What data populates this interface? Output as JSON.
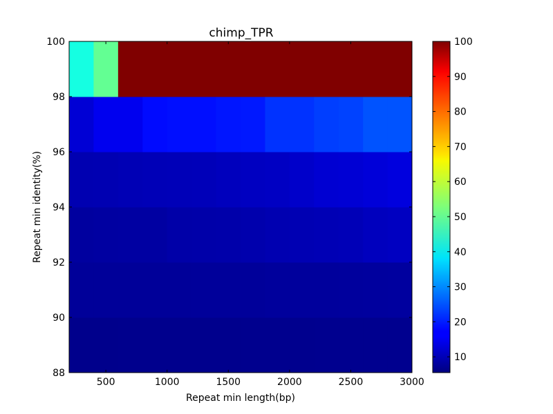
{
  "chart_data": {
    "type": "heatmap",
    "title": "chimp_TPR",
    "xlabel": "Repeat min length(bp)",
    "ylabel": "Repeat min identity(%)",
    "xlim": [
      200,
      3000
    ],
    "ylim": [
      88,
      100
    ],
    "x_ticks": [
      500,
      1000,
      1500,
      2000,
      2500,
      3000
    ],
    "y_ticks": [
      88,
      90,
      92,
      94,
      96,
      98,
      100
    ],
    "x_edges": [
      200,
      400,
      600,
      800,
      1000,
      1200,
      1400,
      1600,
      1800,
      2000,
      2200,
      2400,
      2600,
      2800,
      3000
    ],
    "y_edges": [
      88,
      90,
      92,
      94,
      96,
      98,
      100
    ],
    "colormap": "jet",
    "colorbar": {
      "vmin": 5.5,
      "vmax": 100,
      "ticks": [
        10,
        20,
        30,
        40,
        50,
        60,
        70,
        80,
        90,
        100
      ]
    },
    "values": [
      [
        6.5,
        6.5,
        6.6,
        6.6,
        6.6,
        6.6,
        6.6,
        6.7,
        6.7,
        6.7,
        6.8,
        6.8,
        6.8,
        6.8
      ],
      [
        7.6,
        7.6,
        7.6,
        7.6,
        7.6,
        7.7,
        7.7,
        7.7,
        7.8,
        7.8,
        7.8,
        7.9,
        8.0,
        8.1
      ],
      [
        8.1,
        8.2,
        8.3,
        8.3,
        8.8,
        8.9,
        9.0,
        9.2,
        9.5,
        9.7,
        9.9,
        10.0,
        10.6,
        10.8
      ],
      [
        9.5,
        9.6,
        9.9,
        10.0,
        10.1,
        10.2,
        10.5,
        10.8,
        11.0,
        11.6,
        12.2,
        12.4,
        12.8,
        13.2
      ],
      [
        12.5,
        14.6,
        14.6,
        18.2,
        18.6,
        18.6,
        19.3,
        19.5,
        21.9,
        21.9,
        23.1,
        23.4,
        25.0,
        25.0
      ],
      [
        41.0,
        50.0,
        100,
        100,
        100,
        100,
        100,
        100,
        100,
        100,
        100,
        100,
        100,
        100
      ]
    ]
  }
}
